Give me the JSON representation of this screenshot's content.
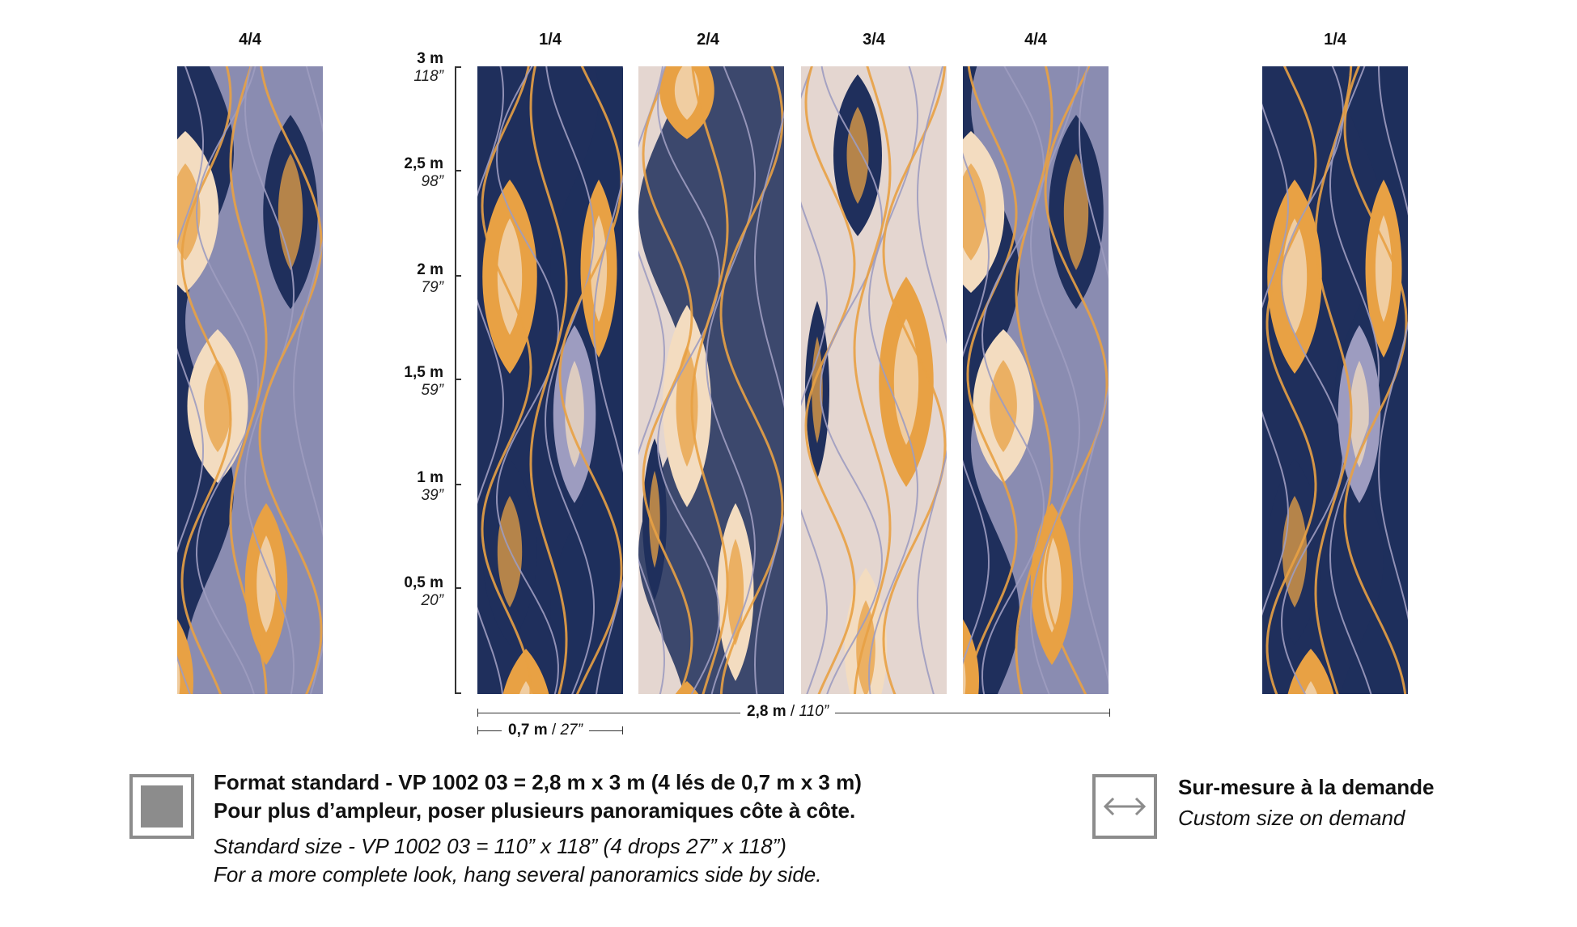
{
  "panel_labels": {
    "left_preview": "4/4",
    "drop_1": "1/4",
    "drop_2": "2/4",
    "drop_3": "3/4",
    "drop_4": "4/4",
    "right_preview": "1/4"
  },
  "scale": [
    {
      "m": "3 m",
      "in": "118”"
    },
    {
      "m": "2,5 m",
      "in": "98”"
    },
    {
      "m": "2 m",
      "in": "79”"
    },
    {
      "m": "1,5 m",
      "in": "59”"
    },
    {
      "m": "1 m",
      "in": "39”"
    },
    {
      "m": "0,5 m",
      "in": "20”"
    }
  ],
  "dimensions": {
    "total_m": "2,8 m",
    "total_sep": " / ",
    "total_in": "110”",
    "drop_m": "0,7 m",
    "drop_sep": " / ",
    "drop_in": "27”"
  },
  "standard": {
    "line1": "Format standard - VP 1002 03 = 2,8 m x 3 m (4 lés de 0,7 m x 3 m)",
    "line2": "Pour plus d’ampleur, poser plusieurs panoramiques côte à côte.",
    "line3": "Standard size - VP 1002 03 = 110” x 118” (4 drops 27” x 118”)",
    "line4": "For a more complete look, hang several panoramics side by side."
  },
  "custom": {
    "title": "Sur-mesure à la demande",
    "subtitle": "Custom size on demand"
  },
  "colors": {
    "navy": "#1f2f5c",
    "lavender": "#9d9cc0",
    "orange": "#e8a144",
    "cream": "#f3dcc0",
    "beige": "#e4d6d0",
    "blue_mid": "#3a5a8a",
    "legend_gray": "#8c8c8c"
  }
}
